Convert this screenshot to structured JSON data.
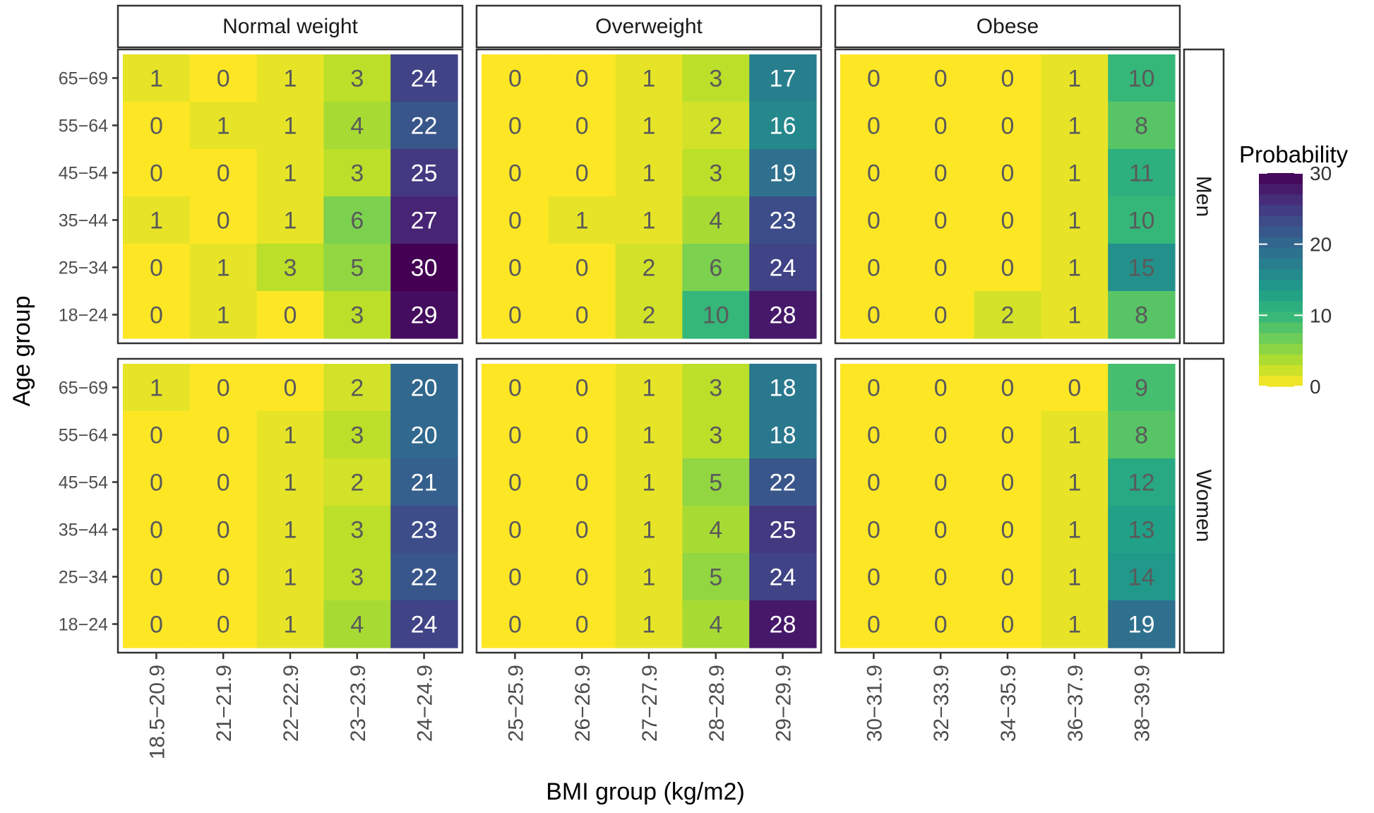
{
  "chart_data": {
    "type": "heatmap",
    "xlabel": "BMI group (kg/m2)",
    "ylabel": "Age group",
    "legend": {
      "title": "Probability",
      "ticks": [
        0,
        10,
        20,
        30
      ],
      "range": [
        0,
        30
      ],
      "placement": "right"
    },
    "columns": [
      {
        "name": "Normal weight",
        "categories": [
          "18.5−20.9",
          "21−21.9",
          "22−22.9",
          "23−23.9",
          "24−24.9"
        ]
      },
      {
        "name": "Overweight",
        "categories": [
          "25−25.9",
          "26−26.9",
          "27−27.9",
          "28−28.9",
          "29−29.9"
        ]
      },
      {
        "name": "Obese",
        "categories": [
          "30−31.9",
          "32−33.9",
          "34−35.9",
          "36−37.9",
          "38−39.9"
        ]
      }
    ],
    "rows": [
      {
        "name": "Men",
        "age_groups": [
          "65−69",
          "55−64",
          "45−54",
          "35−44",
          "25−34",
          "18−24"
        ]
      },
      {
        "name": "Women",
        "age_groups": [
          "65−69",
          "55−64",
          "45−54",
          "35−44",
          "25−34",
          "18−24"
        ]
      }
    ],
    "values": {
      "Men": {
        "Normal weight": [
          [
            1,
            0,
            1,
            3,
            24
          ],
          [
            0,
            1,
            1,
            4,
            22
          ],
          [
            0,
            0,
            1,
            3,
            25
          ],
          [
            1,
            0,
            1,
            6,
            27
          ],
          [
            0,
            1,
            3,
            5,
            30
          ],
          [
            0,
            1,
            0,
            3,
            29
          ]
        ],
        "Overweight": [
          [
            0,
            0,
            1,
            3,
            17
          ],
          [
            0,
            0,
            1,
            2,
            16
          ],
          [
            0,
            0,
            1,
            3,
            19
          ],
          [
            0,
            1,
            1,
            4,
            23
          ],
          [
            0,
            0,
            2,
            6,
            24
          ],
          [
            0,
            0,
            2,
            10,
            28
          ]
        ],
        "Obese": [
          [
            0,
            0,
            0,
            1,
            10
          ],
          [
            0,
            0,
            0,
            1,
            8
          ],
          [
            0,
            0,
            0,
            1,
            11
          ],
          [
            0,
            0,
            0,
            1,
            10
          ],
          [
            0,
            0,
            0,
            1,
            15
          ],
          [
            0,
            0,
            2,
            1,
            8
          ]
        ]
      },
      "Women": {
        "Normal weight": [
          [
            1,
            0,
            0,
            2,
            20
          ],
          [
            0,
            0,
            1,
            3,
            20
          ],
          [
            0,
            0,
            1,
            2,
            21
          ],
          [
            0,
            0,
            1,
            3,
            23
          ],
          [
            0,
            0,
            1,
            3,
            22
          ],
          [
            0,
            0,
            1,
            4,
            24
          ]
        ],
        "Overweight": [
          [
            0,
            0,
            1,
            3,
            18
          ],
          [
            0,
            0,
            1,
            3,
            18
          ],
          [
            0,
            0,
            1,
            5,
            22
          ],
          [
            0,
            0,
            1,
            4,
            25
          ],
          [
            0,
            0,
            1,
            5,
            24
          ],
          [
            0,
            0,
            1,
            4,
            28
          ]
        ],
        "Obese": [
          [
            0,
            0,
            0,
            0,
            9
          ],
          [
            0,
            0,
            0,
            1,
            8
          ],
          [
            0,
            0,
            0,
            1,
            12
          ],
          [
            0,
            0,
            0,
            1,
            13
          ],
          [
            0,
            0,
            0,
            1,
            14
          ],
          [
            0,
            0,
            0,
            1,
            19
          ]
        ]
      }
    },
    "colorscale": "viridis-reversed"
  }
}
